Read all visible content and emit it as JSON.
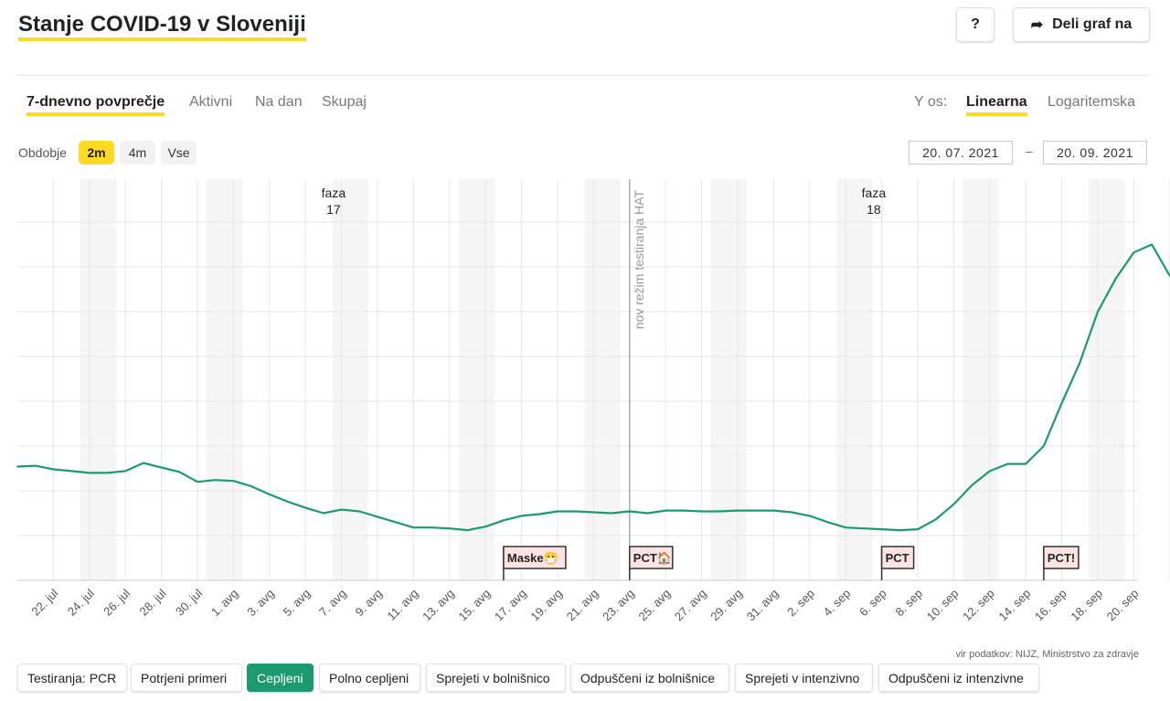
{
  "header": {
    "title": "Stanje COVID-19 v Sloveniji",
    "help_label": "?",
    "share_label": "Deli graf na"
  },
  "tabs": [
    "7-dnevno povprečje",
    "Aktivni",
    "Na dan",
    "Skupaj"
  ],
  "y_axis": {
    "label": "Y os:",
    "options": [
      "Linearna",
      "Logaritemska"
    ]
  },
  "period": {
    "label": "Obdobje",
    "options": [
      "2m",
      "4m",
      "Vse"
    ],
    "from": "20. 07. 2021",
    "dash": "–",
    "to": "20. 09. 2021"
  },
  "source": "vir podatkov: NIJZ, Ministrstvo za zdravje",
  "series_buttons": [
    "Testiranja: PCR",
    "Potrjeni primeri",
    "Cepljeni",
    "Polno cepljeni",
    "Sprejeti v bolnišnico",
    "Odpuščeni iz bolnišnice",
    "Sprejeti v intenzivno",
    "Odpuščeni iz intenzivne"
  ],
  "colors": {
    "accent": "#ffd922",
    "line": "#1c9a6f",
    "active_button": "#1c9a6f",
    "flag_bg": "#fde2e2"
  },
  "chart_data": {
    "type": "line",
    "start_date": "2021-07-20",
    "x_tick_labels": [
      "22. jul",
      "24. jul",
      "26. jul",
      "28. jul",
      "30. jul",
      "1. avg",
      "3. avg",
      "5. avg",
      "7. avg",
      "9. avg",
      "11. avg",
      "13. avg",
      "15. avg",
      "17. avg",
      "19. avg",
      "21. avg",
      "23. avg",
      "25. avg",
      "27. avg",
      "29. avg",
      "31. avg",
      "2. sep",
      "4. sep",
      "6. sep",
      "8. sep",
      "10. sep",
      "12. sep",
      "14. sep",
      "16. sep",
      "18. sep",
      "20. sep"
    ],
    "grid": true,
    "y_scale": "linear",
    "weekend_shading": true,
    "series": [
      {
        "values": [
          127,
          128,
          124,
          122,
          120,
          120,
          122,
          131,
          126,
          121,
          110,
          112,
          111,
          105,
          96,
          88,
          81,
          75,
          79,
          77,
          71,
          65,
          59,
          59,
          58,
          56,
          60,
          67,
          72,
          74,
          77,
          77,
          76,
          75,
          77,
          75,
          78,
          78,
          77,
          77,
          78,
          78,
          78,
          76,
          72,
          65,
          59,
          58,
          57,
          56,
          57,
          68,
          85,
          106,
          122,
          130,
          130,
          150,
          198,
          243,
          300,
          337,
          366,
          375,
          340
        ]
      }
    ],
    "phase_labels": [
      {
        "date": "2021-08-06",
        "text_line1": "faza",
        "text_line2": "17"
      },
      {
        "date": "2021-09-05",
        "text_line1": "faza",
        "text_line2": "18"
      }
    ],
    "vertical_marker": {
      "date": "2021-08-23",
      "text": "nov režim testiranja HAT"
    },
    "flags": [
      {
        "date": "2021-08-16",
        "text": "Maske😷"
      },
      {
        "date": "2021-08-23",
        "text": "PCT🏠"
      },
      {
        "date": "2021-09-06",
        "text": "PCT"
      },
      {
        "date": "2021-09-15",
        "text": "PCT!"
      }
    ]
  }
}
